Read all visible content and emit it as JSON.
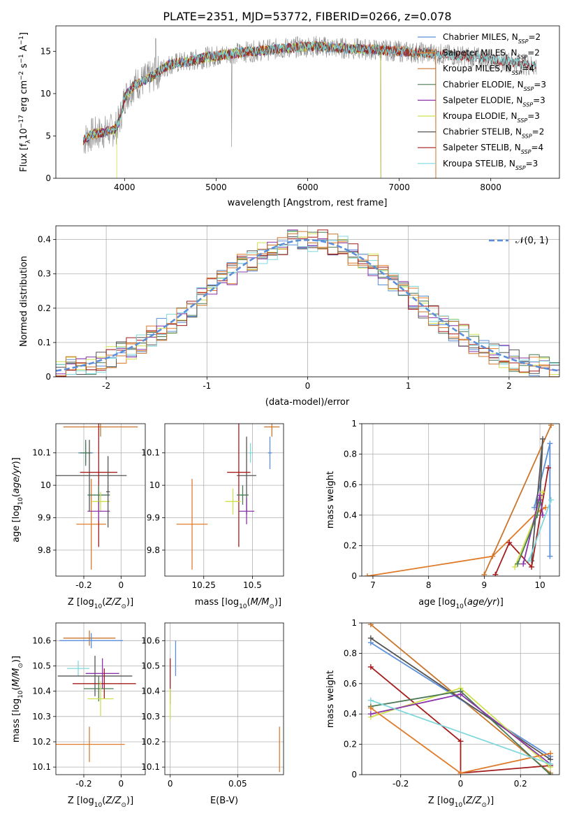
{
  "title": "PLATE=2351, MJD=53772, FIBERID=0266, z=0.078",
  "colors": {
    "Chabrier MILES": "#5b8fd9",
    "Salpeter MILES": "#e07b2a",
    "Kroupa MILES": "#c9762c",
    "Chabrier ELODIE": "#4a7a55",
    "Salpeter ELODIE": "#8a35a8",
    "Kroupa ELODIE": "#cfe04f",
    "Chabrier STELIB": "#555555",
    "Salpeter STELIB": "#a51c1c",
    "Kroupa STELIB": "#7fd8dc",
    "orange": "#e07b2a",
    "pink": "#e27fb6",
    "gray": "#777777"
  },
  "chart_data": [
    {
      "id": "spectrum",
      "type": "line",
      "xlabel": "wavelength [Angstrom, rest frame]",
      "ylabel": "Flux [fλ10⁻¹⁷ erg cm⁻² s⁻¹ A⁻¹]",
      "xlim": [
        3250,
        8750
      ],
      "ylim": [
        0,
        18
      ],
      "xticks": [
        4000,
        5000,
        6000,
        7000,
        8000
      ],
      "yticks": [
        0,
        5,
        10,
        15
      ],
      "grid": false,
      "legend_position": "right",
      "legend": [
        {
          "base": "Chabrier MILES, N",
          "sub": "SSP",
          "tail": "=2"
        },
        {
          "base": "Salpeter MILES, N",
          "sub": "SSP",
          "tail": "=2"
        },
        {
          "base": "Kroupa MILES, N",
          "sub": "SSP",
          "tail": "=4"
        },
        {
          "base": "Chabrier ELODIE, N",
          "sub": "SSP",
          "tail": "=3"
        },
        {
          "base": "Salpeter ELODIE, N",
          "sub": "SSP",
          "tail": "=3"
        },
        {
          "base": "Kroupa ELODIE, N",
          "sub": "SSP",
          "tail": "=3"
        },
        {
          "base": "Chabrier STELIB, N",
          "sub": "SSP",
          "tail": "=2"
        },
        {
          "base": "Salpeter STELIB, N",
          "sub": "SSP",
          "tail": "=4"
        },
        {
          "base": "Kroupa STELIB, N",
          "sub": "SSP",
          "tail": "=3"
        }
      ],
      "continuum": [
        [
          3550,
          4.5
        ],
        [
          3650,
          5.2
        ],
        [
          3800,
          5.5
        ],
        [
          3900,
          5.8
        ],
        [
          3950,
          7.0
        ],
        [
          4000,
          9.5
        ],
        [
          4100,
          11.0
        ],
        [
          4200,
          11.5
        ],
        [
          4300,
          12.0
        ],
        [
          4400,
          12.8
        ],
        [
          4500,
          13.5
        ],
        [
          4700,
          13.8
        ],
        [
          4900,
          14.3
        ],
        [
          5100,
          14.6
        ],
        [
          5300,
          14.9
        ],
        [
          5500,
          15.1
        ],
        [
          5700,
          15.3
        ],
        [
          5900,
          15.5
        ],
        [
          6100,
          15.6
        ],
        [
          6300,
          15.4
        ],
        [
          6500,
          15.3
        ],
        [
          6700,
          15.2
        ],
        [
          6900,
          15.1
        ],
        [
          7100,
          14.9
        ],
        [
          7300,
          14.8
        ],
        [
          7500,
          14.6
        ],
        [
          7700,
          14.4
        ],
        [
          7900,
          14.2
        ],
        [
          8100,
          13.9
        ],
        [
          8300,
          13.6
        ],
        [
          8500,
          13.2
        ]
      ]
    },
    {
      "id": "residual_hist",
      "type": "histogram",
      "xlabel": "(data-model)/error",
      "ylabel": "Normed distribution",
      "xlim": [
        -2.5,
        2.5
      ],
      "ylim": [
        0,
        0.44
      ],
      "xticks": [
        -2,
        -1,
        0,
        1,
        2
      ],
      "yticks": [
        0.0,
        0.1,
        0.2,
        0.3,
        0.4
      ],
      "grid": true,
      "legend_position": "top-right",
      "normal_curve_label": "𝒩(0, 1)",
      "bin_width": 0.1
    },
    {
      "id": "age_vs_Z",
      "type": "errorbar",
      "xlabel": "Z [log10(Z/Z☉)]",
      "ylabel": "age  [log10(age/yr)]",
      "xlim": [
        -0.35,
        0.13
      ],
      "ylim": [
        9.72,
        10.19
      ],
      "xticks": [
        -0.2,
        0.0
      ],
      "yticks": [
        9.8,
        9.9,
        10.0,
        10.1
      ],
      "grid": true,
      "points": [
        {
          "model": "Kroupa MILES",
          "x": -0.11,
          "y": 10.18,
          "xerr": 0.2,
          "yerr": 0.03
        },
        {
          "model": "Chabrier MILES",
          "x": -0.19,
          "y": 10.1,
          "xerr": 0.04,
          "yerr": 0.03
        },
        {
          "model": "Salpeter MILES",
          "x": -0.16,
          "y": 9.88,
          "xerr": 0.08,
          "yerr": 0.14
        },
        {
          "model": "Chabrier ELODIE",
          "x": -0.19,
          "y": 10.1,
          "xerr": 0.03,
          "yerr": 0.04
        },
        {
          "model": "Chabrier STELIB",
          "x": -0.17,
          "y": 10.03,
          "xerr": 0.2,
          "yerr": 0.11
        },
        {
          "model": "Salpeter STELIB",
          "x": -0.12,
          "y": 10.04,
          "xerr": 0.1,
          "yerr": 0.23
        },
        {
          "model": "Chabrier ELODIE",
          "x": -0.12,
          "y": 9.97,
          "xerr": 0.06,
          "yerr": 0.03
        },
        {
          "model": "Kroupa ELODIE",
          "x": -0.11,
          "y": 9.95,
          "xerr": 0.05,
          "yerr": 0.03
        },
        {
          "model": "Salpeter ELODIE",
          "x": -0.12,
          "y": 9.92,
          "xerr": 0.06,
          "yerr": 0.03
        },
        {
          "model": "Chabrier STELIB",
          "x": -0.07,
          "y": 9.98,
          "xerr": 0.01,
          "yerr": 0.11
        }
      ]
    },
    {
      "id": "age_vs_mass",
      "type": "errorbar",
      "xlabel": "mass [log10(M/M☉)]",
      "ylabel": "",
      "xlim": [
        10.05,
        10.66
      ],
      "ylim": [
        9.72,
        10.19
      ],
      "xticks": [
        10.25,
        10.5
      ],
      "yticks": [
        9.8,
        9.9,
        10.0,
        10.1
      ],
      "grid": true,
      "points": [
        {
          "model": "Kroupa MILES",
          "x": 10.6,
          "y": 10.18,
          "xerr": 0.04,
          "yerr": 0.03
        },
        {
          "model": "Chabrier MILES",
          "x": 10.59,
          "y": 10.1,
          "xerr": 0.01,
          "yerr": 0.05
        },
        {
          "model": "Kroupa STELIB",
          "x": 10.49,
          "y": 10.1,
          "xerr": 0.01,
          "yerr": 0.03
        },
        {
          "model": "Salpeter MILES",
          "x": 10.19,
          "y": 9.88,
          "xerr": 0.08,
          "yerr": 0.14
        },
        {
          "model": "Chabrier STELIB",
          "x": 10.47,
          "y": 10.03,
          "xerr": 0.05,
          "yerr": 0.12
        },
        {
          "model": "Salpeter STELIB",
          "x": 10.43,
          "y": 10.04,
          "xerr": 0.06,
          "yerr": 0.23
        },
        {
          "model": "Kroupa ELODIE",
          "x": 10.4,
          "y": 9.95,
          "xerr": 0.04,
          "yerr": 0.04
        },
        {
          "model": "Chabrier ELODIE",
          "x": 10.45,
          "y": 9.97,
          "xerr": 0.03,
          "yerr": 0.03
        },
        {
          "model": "Salpeter ELODIE",
          "x": 10.47,
          "y": 9.92,
          "xerr": 0.04,
          "yerr": 0.04
        }
      ]
    },
    {
      "id": "weight_vs_age",
      "type": "line",
      "xlabel": "age  [log10(age/yr)]",
      "ylabel": "mass weight",
      "xlim": [
        6.8,
        10.35
      ],
      "ylim": [
        0,
        1.0
      ],
      "xticks": [
        7,
        8,
        9,
        10
      ],
      "yticks": [
        0.0,
        0.2,
        0.4,
        0.6,
        0.8,
        1.0
      ],
      "grid": true,
      "series": [
        {
          "model": "Salpeter MILES",
          "x": [
            6.9,
            9.15,
            9.95,
            10.1
          ],
          "y": [
            0.0,
            0.13,
            0.42,
            0.45
          ]
        },
        {
          "model": "Kroupa MILES",
          "x": [
            9.0,
            10.2
          ],
          "y": [
            0.01,
            0.99
          ]
        },
        {
          "model": "Chabrier MILES",
          "x": [
            9.9,
            10.18,
            10.18
          ],
          "y": [
            0.45,
            0.87,
            0.13
          ]
        },
        {
          "model": "Chabrier STELIB",
          "x": [
            9.85,
            10.05,
            10.0
          ],
          "y": [
            0.1,
            0.9,
            0.5
          ]
        },
        {
          "model": "Salpeter STELIB",
          "x": [
            9.2,
            9.45,
            9.85,
            10.15
          ],
          "y": [
            0.01,
            0.22,
            0.06,
            0.71
          ]
        },
        {
          "model": "Kroupa ELODIE",
          "x": [
            9.55,
            9.95,
            10.05
          ],
          "y": [
            0.06,
            0.42,
            0.55
          ]
        },
        {
          "model": "Salpeter ELODIE",
          "x": [
            9.7,
            10.0,
            10.05
          ],
          "y": [
            0.08,
            0.53,
            0.4
          ]
        },
        {
          "model": "Kroupa STELIB",
          "x": [
            9.8,
            10.2
          ],
          "y": [
            0.1,
            0.5
          ]
        },
        {
          "model": "Chabrier ELODIE",
          "x": [
            9.6,
            9.95,
            10.0
          ],
          "y": [
            0.08,
            0.4,
            0.48
          ]
        }
      ]
    },
    {
      "id": "mass_vs_Z",
      "type": "errorbar",
      "xlabel": "Z [log10(Z/Z☉)]",
      "ylabel": "mass [log10(M/M☉)]",
      "xlim": [
        -0.35,
        0.13
      ],
      "ylim": [
        10.07,
        10.67
      ],
      "xticks": [
        -0.2,
        0.0
      ],
      "yticks": [
        10.1,
        10.2,
        10.3,
        10.4,
        10.5,
        10.6
      ],
      "grid": true,
      "points": [
        {
          "model": "Kroupa MILES",
          "x": -0.17,
          "y": 10.61,
          "xerr": 0.14,
          "yerr": 0.03
        },
        {
          "model": "Chabrier MILES",
          "x": -0.16,
          "y": 10.6,
          "xerr": 0.17,
          "yerr": 0.03
        },
        {
          "model": "Kroupa STELIB",
          "x": -0.23,
          "y": 10.49,
          "xerr": 0.06,
          "yerr": 0.03
        },
        {
          "model": "Chabrier STELIB",
          "x": -0.14,
          "y": 10.46,
          "xerr": 0.2,
          "yerr": 0.08
        },
        {
          "model": "Salpeter ELODIE",
          "x": -0.1,
          "y": 10.47,
          "xerr": 0.09,
          "yerr": 0.06
        },
        {
          "model": "Salpeter STELIB",
          "x": -0.09,
          "y": 10.43,
          "xerr": 0.17,
          "yerr": 0.06
        },
        {
          "model": "Chabrier ELODIE",
          "x": -0.12,
          "y": 10.41,
          "xerr": 0.08,
          "yerr": 0.05
        },
        {
          "model": "Kroupa ELODIE",
          "x": -0.11,
          "y": 10.37,
          "xerr": 0.07,
          "yerr": 0.07
        },
        {
          "model": "Salpeter MILES",
          "x": -0.17,
          "y": 10.19,
          "xerr": 0.19,
          "yerr": 0.07
        }
      ]
    },
    {
      "id": "mass_vs_ebv",
      "type": "errorbar",
      "xlabel": "E(B-V)",
      "ylabel": "",
      "xlim": [
        -0.004,
        0.084
      ],
      "ylim": [
        10.07,
        10.67
      ],
      "xticks": [
        0.0,
        0.05
      ],
      "yticks": [
        10.1,
        10.2,
        10.3,
        10.4,
        10.5,
        10.6
      ],
      "grid": true,
      "points": [
        {
          "model": "Chabrier MILES",
          "x": 0.004,
          "y": 10.53,
          "xerr": 0.0,
          "yerr": 0.07
        },
        {
          "model": "Salpeter STELIB",
          "x": 0.0,
          "y": 10.44,
          "xerr": 0.0,
          "yerr": 0.09
        },
        {
          "model": "Kroupa ELODIE",
          "x": 0.0,
          "y": 10.35,
          "xerr": 0.0,
          "yerr": 0.06
        },
        {
          "model": "Salpeter MILES",
          "x": 0.081,
          "y": 10.17,
          "xerr": 0.0,
          "yerr": 0.09
        }
      ]
    },
    {
      "id": "weight_vs_Z",
      "type": "line",
      "xlabel": "Z [log10(Z/Z☉)]",
      "ylabel": "mass weight",
      "xlim": [
        -0.33,
        0.33
      ],
      "ylim": [
        0,
        1.0
      ],
      "xticks": [
        -0.2,
        0.0,
        0.2
      ],
      "yticks": [
        0.0,
        0.2,
        0.4,
        0.6,
        0.8,
        1.0
      ],
      "grid": true,
      "series": [
        {
          "model": "Kroupa MILES",
          "x": [
            -0.3,
            0.3
          ],
          "y": [
            0.99,
            0.01
          ]
        },
        {
          "model": "Chabrier MILES",
          "x": [
            -0.3,
            0.3
          ],
          "y": [
            0.87,
            0.12
          ]
        },
        {
          "model": "Chabrier STELIB",
          "x": [
            -0.3,
            0.3
          ],
          "y": [
            0.9,
            0.1
          ]
        },
        {
          "model": "Salpeter STELIB",
          "x": [
            -0.3,
            0.0,
            0.0,
            0.3
          ],
          "y": [
            0.71,
            0.22,
            0.01,
            0.06
          ]
        },
        {
          "model": "Kroupa ELODIE",
          "x": [
            -0.3,
            0.0,
            0.3
          ],
          "y": [
            0.38,
            0.57,
            0.05
          ]
        },
        {
          "model": "Chabrier ELODIE",
          "x": [
            -0.3,
            0.0,
            0.3
          ],
          "y": [
            0.45,
            0.55,
            0.0
          ]
        },
        {
          "model": "Salpeter ELODIE",
          "x": [
            -0.3,
            0.0,
            0.3
          ],
          "y": [
            0.4,
            0.53,
            0.07
          ]
        },
        {
          "model": "Salpeter MILES",
          "x": [
            -0.3,
            0.0,
            0.3
          ],
          "y": [
            0.44,
            0.01,
            0.14
          ]
        },
        {
          "model": "Kroupa STELIB",
          "x": [
            -0.3,
            0.3
          ],
          "y": [
            0.49,
            0.07
          ]
        }
      ]
    }
  ]
}
